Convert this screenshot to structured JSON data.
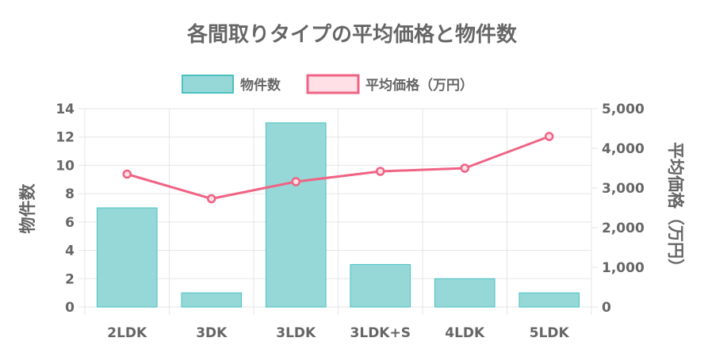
{
  "chart_data": {
    "type": "bar",
    "title": "各間取りタイプの平均価格と物件数",
    "categories": [
      "2LDK",
      "3DK",
      "3LDK",
      "3LDK+S",
      "4LDK",
      "5LDK"
    ],
    "series": [
      {
        "name": "物件数",
        "type": "bar",
        "axis": "left",
        "values": [
          7,
          1,
          13,
          3,
          2,
          1
        ]
      },
      {
        "name": "平均価格（万円）",
        "type": "line",
        "axis": "right",
        "values": [
          3350,
          2730,
          3160,
          3420,
          3500,
          4300
        ]
      }
    ],
    "ylabel": "物件数",
    "y2label": "平均価格（万円）",
    "ylim": [
      0,
      14
    ],
    "y2lim": [
      0,
      5000
    ],
    "yticks": [
      "0",
      "2",
      "4",
      "6",
      "8",
      "10",
      "12",
      "14"
    ],
    "y2ticks": [
      "0",
      "1,000",
      "2,000",
      "3,000",
      "4,000",
      "5,000"
    ],
    "grid": true,
    "legend": "top-center",
    "colors": {
      "bar_fill": "#96d8d8",
      "bar_stroke": "#4bc0c0",
      "line": "#f06384",
      "line_fill": "#ffe0e6",
      "grid": "#e5e5e5",
      "text": "#666666"
    }
  }
}
